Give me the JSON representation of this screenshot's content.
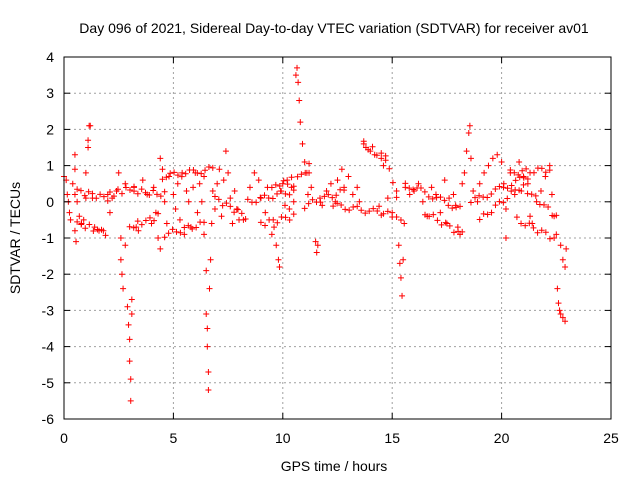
{
  "chart_data": {
    "type": "scatter",
    "title": "Day 096 of 2021, Sidereal Day-to-day VTEC variation (SDTVAR) for receiver av01",
    "xlabel": "GPS time / hours",
    "ylabel": "SDTVAR / TECUs",
    "xlim": [
      0,
      25
    ],
    "ylim": [
      -6,
      4
    ],
    "xticks": [
      "0",
      "5",
      "10",
      "15",
      "20",
      "25"
    ],
    "yticks": [
      "4",
      "3",
      "2",
      "1",
      "0",
      "-1",
      "-2",
      "-3",
      "-4",
      "-5",
      "-6"
    ],
    "grid": true,
    "marker": "plus",
    "color": "#ff0000",
    "series": [
      {
        "name": "SDTVAR",
        "points": [
          [
            0.0,
            0.7
          ],
          [
            0.1,
            0.6
          ],
          [
            0.15,
            0.2
          ],
          [
            0.2,
            0.0
          ],
          [
            0.25,
            -0.3
          ],
          [
            0.3,
            -0.5
          ],
          [
            0.4,
            0.5
          ],
          [
            0.5,
            0.9
          ],
          [
            0.5,
            1.3
          ],
          [
            0.5,
            0.2
          ],
          [
            0.5,
            -0.8
          ],
          [
            0.55,
            -1.1
          ],
          [
            0.6,
            0.0
          ],
          [
            0.7,
            -0.4
          ],
          [
            0.8,
            -0.6
          ],
          [
            0.9,
            -0.5
          ],
          [
            1.0,
            0.1
          ],
          [
            1.0,
            0.8
          ],
          [
            1.1,
            1.5
          ],
          [
            1.1,
            1.7
          ],
          [
            1.15,
            2.1
          ],
          [
            1.2,
            2.1
          ],
          [
            1.3,
            0.1
          ],
          [
            1.4,
            -0.7
          ],
          [
            1.6,
            -0.8
          ],
          [
            1.8,
            -0.8
          ],
          [
            2.0,
            0.2
          ],
          [
            2.1,
            -0.3
          ],
          [
            2.2,
            0.1
          ],
          [
            2.4,
            0.3
          ],
          [
            2.5,
            0.8
          ],
          [
            2.6,
            -1.0
          ],
          [
            2.6,
            -1.6
          ],
          [
            2.65,
            -2.0
          ],
          [
            2.7,
            -2.4
          ],
          [
            2.8,
            -1.2
          ],
          [
            2.8,
            0.5
          ],
          [
            2.9,
            -2.9
          ],
          [
            2.95,
            -3.4
          ],
          [
            3.0,
            -3.8
          ],
          [
            3.0,
            -4.4
          ],
          [
            3.05,
            -4.9
          ],
          [
            3.05,
            -5.5
          ],
          [
            3.1,
            -3.1
          ],
          [
            3.1,
            -2.7
          ],
          [
            3.2,
            0.4
          ],
          [
            3.3,
            -0.7
          ],
          [
            3.4,
            -0.8
          ],
          [
            3.6,
            0.6
          ],
          [
            3.8,
            0.2
          ],
          [
            4.0,
            -0.6
          ],
          [
            4.1,
            0.4
          ],
          [
            4.2,
            -0.3
          ],
          [
            4.3,
            -1.0
          ],
          [
            4.4,
            -1.3
          ],
          [
            4.4,
            1.2
          ],
          [
            4.5,
            0.9
          ],
          [
            4.6,
            0.0
          ],
          [
            4.7,
            -0.6
          ],
          [
            4.8,
            0.7
          ],
          [
            5.0,
            0.2
          ],
          [
            5.1,
            -0.2
          ],
          [
            5.2,
            0.5
          ],
          [
            5.3,
            -0.5
          ],
          [
            5.4,
            0.8
          ],
          [
            5.5,
            -0.9
          ],
          [
            5.6,
            0.3
          ],
          [
            5.7,
            0.0
          ],
          [
            5.8,
            -0.7
          ],
          [
            5.9,
            0.4
          ],
          [
            6.0,
            0.8
          ],
          [
            6.1,
            -0.3
          ],
          [
            6.2,
            0.5
          ],
          [
            6.3,
            0.0
          ],
          [
            6.4,
            -0.9
          ],
          [
            6.4,
            0.7
          ],
          [
            6.5,
            -1.9
          ],
          [
            6.5,
            -3.1
          ],
          [
            6.55,
            -3.5
          ],
          [
            6.55,
            -4.0
          ],
          [
            6.6,
            -4.7
          ],
          [
            6.6,
            -5.2
          ],
          [
            6.65,
            -2.4
          ],
          [
            6.7,
            -1.6
          ],
          [
            6.75,
            -0.6
          ],
          [
            6.8,
            0.3
          ],
          [
            6.9,
            -0.2
          ],
          [
            7.0,
            0.5
          ],
          [
            7.1,
            0.9
          ],
          [
            7.2,
            -0.4
          ],
          [
            7.3,
            0.6
          ],
          [
            7.4,
            1.4
          ],
          [
            7.5,
            0.8
          ],
          [
            7.6,
            0.1
          ],
          [
            7.7,
            -0.6
          ],
          [
            7.8,
            0.3
          ],
          [
            7.9,
            -0.2
          ],
          [
            8.0,
            -0.5
          ],
          [
            8.2,
            -0.5
          ],
          [
            8.5,
            0.4
          ],
          [
            8.7,
            0.8
          ],
          [
            8.9,
            0.6
          ],
          [
            9.0,
            0.1
          ],
          [
            9.2,
            -0.3
          ],
          [
            9.3,
            0.4
          ],
          [
            9.5,
            -0.9
          ],
          [
            9.6,
            -0.7
          ],
          [
            9.7,
            -1.2
          ],
          [
            9.8,
            -1.6
          ],
          [
            9.85,
            -1.8
          ],
          [
            9.9,
            0.3
          ],
          [
            10.0,
            0.5
          ],
          [
            10.1,
            -0.1
          ],
          [
            10.2,
            0.6
          ],
          [
            10.3,
            -0.2
          ],
          [
            10.4,
            0.4
          ],
          [
            10.5,
            0.0
          ],
          [
            10.6,
            3.5
          ],
          [
            10.65,
            3.7
          ],
          [
            10.7,
            3.3
          ],
          [
            10.75,
            2.8
          ],
          [
            10.8,
            2.2
          ],
          [
            10.9,
            1.6
          ],
          [
            11.0,
            1.1
          ],
          [
            11.1,
            0.8
          ],
          [
            11.15,
            0.2
          ],
          [
            11.2,
            0.8
          ],
          [
            11.3,
            0.4
          ],
          [
            11.5,
            -1.1
          ],
          [
            11.55,
            -1.4
          ],
          [
            11.6,
            -1.2
          ],
          [
            11.7,
            0.1
          ],
          [
            11.8,
            -0.1
          ],
          [
            12.0,
            0.3
          ],
          [
            12.2,
            0.5
          ],
          [
            12.4,
            0.0
          ],
          [
            12.5,
            0.6
          ],
          [
            12.7,
            0.9
          ],
          [
            12.8,
            0.4
          ],
          [
            13.0,
            0.7
          ],
          [
            13.2,
            0.2
          ],
          [
            13.4,
            0.4
          ],
          [
            13.5,
            0.0
          ],
          [
            13.7,
            1.6
          ],
          [
            13.8,
            1.5
          ],
          [
            14.0,
            1.4
          ],
          [
            14.2,
            1.3
          ],
          [
            14.5,
            1.2
          ],
          [
            14.6,
            1.0
          ],
          [
            14.8,
            0.1
          ],
          [
            15.0,
            -0.3
          ],
          [
            15.2,
            0.3
          ],
          [
            15.3,
            -1.2
          ],
          [
            15.35,
            -1.7
          ],
          [
            15.4,
            -2.1
          ],
          [
            15.45,
            -2.6
          ],
          [
            15.5,
            -1.6
          ],
          [
            15.55,
            -0.6
          ],
          [
            15.6,
            0.4
          ],
          [
            15.8,
            0.2
          ],
          [
            16.0,
            0.3
          ],
          [
            16.2,
            0.5
          ],
          [
            16.4,
            0.0
          ],
          [
            16.6,
            -0.4
          ],
          [
            16.8,
            0.4
          ],
          [
            17.0,
            0.2
          ],
          [
            17.2,
            -0.3
          ],
          [
            17.4,
            0.6
          ],
          [
            17.5,
            -0.6
          ],
          [
            17.6,
            0.1
          ],
          [
            17.8,
            0.2
          ],
          [
            17.9,
            -0.1
          ],
          [
            18.0,
            -0.7
          ],
          [
            18.1,
            -0.9
          ],
          [
            18.2,
            0.5
          ],
          [
            18.3,
            0.8
          ],
          [
            18.4,
            1.4
          ],
          [
            18.5,
            1.9
          ],
          [
            18.55,
            2.1
          ],
          [
            18.6,
            1.2
          ],
          [
            18.7,
            0.3
          ],
          [
            18.9,
            0.0
          ],
          [
            19.0,
            0.5
          ],
          [
            19.2,
            0.8
          ],
          [
            19.4,
            1.0
          ],
          [
            19.6,
            1.2
          ],
          [
            19.8,
            1.3
          ],
          [
            20.0,
            1.1
          ],
          [
            20.1,
            0.5
          ],
          [
            20.2,
            -0.2
          ],
          [
            20.2,
            -1.0
          ],
          [
            20.4,
            0.8
          ],
          [
            20.6,
            0.2
          ],
          [
            20.8,
            1.1
          ],
          [
            20.9,
            0.3
          ],
          [
            21.0,
            0.7
          ],
          [
            21.2,
            0.5
          ],
          [
            21.3,
            -0.4
          ],
          [
            21.4,
            -0.6
          ],
          [
            21.6,
            0.0
          ],
          [
            21.8,
            0.3
          ],
          [
            22.0,
            0.7
          ],
          [
            22.2,
            1.0
          ],
          [
            22.3,
            0.2
          ],
          [
            22.4,
            -0.4
          ],
          [
            22.5,
            -0.9
          ],
          [
            22.55,
            -2.4
          ],
          [
            22.6,
            -2.8
          ],
          [
            22.65,
            -3.0
          ],
          [
            22.7,
            -3.1
          ],
          [
            22.8,
            -3.2
          ],
          [
            22.9,
            -3.3
          ],
          [
            22.7,
            -1.2
          ],
          [
            22.8,
            -1.6
          ],
          [
            22.9,
            -1.8
          ],
          [
            22.95,
            -1.3
          ]
        ],
        "segments": [
          [
            [
              0.6,
              -0.6
            ],
            [
              1.9,
              -0.85
            ]
          ],
          [
            [
              0.6,
              0.3
            ],
            [
              2.0,
              0.1
            ]
          ],
          [
            [
              2.1,
              0.2
            ],
            [
              3.2,
              0.4
            ]
          ],
          [
            [
              3.0,
              -0.7
            ],
            [
              4.3,
              -0.4
            ]
          ],
          [
            [
              3.2,
              0.3
            ],
            [
              4.6,
              0.2
            ]
          ],
          [
            [
              4.5,
              0.7
            ],
            [
              6.8,
              0.9
            ]
          ],
          [
            [
              4.6,
              -0.9
            ],
            [
              6.4,
              -0.6
            ]
          ],
          [
            [
              6.9,
              0.1
            ],
            [
              8.3,
              -0.4
            ]
          ],
          [
            [
              8.4,
              0.0
            ],
            [
              10.5,
              0.3
            ]
          ],
          [
            [
              9.0,
              -0.6
            ],
            [
              10.5,
              -0.4
            ]
          ],
          [
            [
              11.0,
              -0.1
            ],
            [
              12.8,
              0.3
            ]
          ],
          [
            [
              12.3,
              -0.1
            ],
            [
              14.5,
              -0.3
            ]
          ],
          [
            [
              14.4,
              -0.2
            ],
            [
              15.4,
              -0.5
            ]
          ],
          [
            [
              13.7,
              1.6
            ],
            [
              14.7,
              1.2
            ]
          ],
          [
            [
              14.7,
              1.2
            ],
            [
              15.2,
              0.1
            ]
          ],
          [
            [
              15.6,
              0.5
            ],
            [
              18.1,
              -0.2
            ]
          ],
          [
            [
              16.5,
              -0.3
            ],
            [
              18.2,
              -0.9
            ]
          ],
          [
            [
              18.6,
              0.0
            ],
            [
              21.2,
              0.7
            ]
          ],
          [
            [
              19.0,
              -0.5
            ],
            [
              20.8,
              0.4
            ]
          ],
          [
            [
              20.4,
              0.8
            ],
            [
              22.2,
              0.9
            ]
          ],
          [
            [
              21.0,
              0.4
            ],
            [
              22.5,
              -0.4
            ]
          ],
          [
            [
              20.7,
              -0.5
            ],
            [
              22.4,
              -1.0
            ]
          ],
          [
            [
              9.5,
              0.4
            ],
            [
              10.4,
              0.6
            ]
          ],
          [
            [
              10.5,
              0.5
            ],
            [
              11.2,
              1.0
            ]
          ]
        ]
      }
    ]
  }
}
